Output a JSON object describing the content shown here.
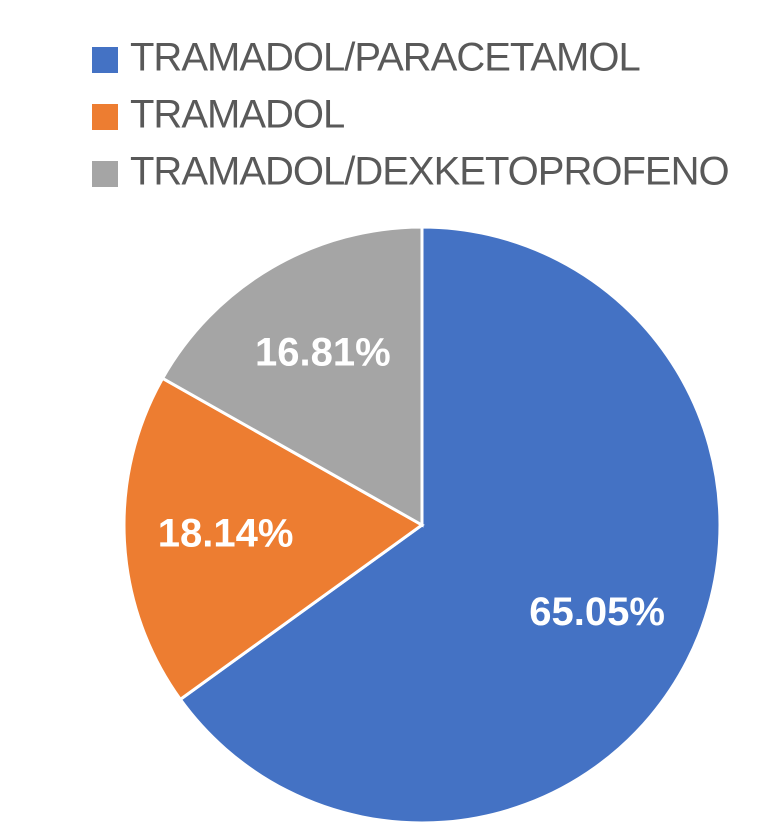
{
  "chart_data": {
    "type": "pie",
    "categories": [
      "TRAMADOL/PARACETAMOL",
      "TRAMADOL",
      "TRAMADOL/DEXKETOPROFENO"
    ],
    "values": [
      65.05,
      18.14,
      16.81
    ],
    "value_labels": [
      "65.05%",
      "18.14%",
      "16.81%"
    ],
    "colors": [
      "#4472c4",
      "#ed7d31",
      "#a5a5a5"
    ],
    "legend": "top"
  }
}
